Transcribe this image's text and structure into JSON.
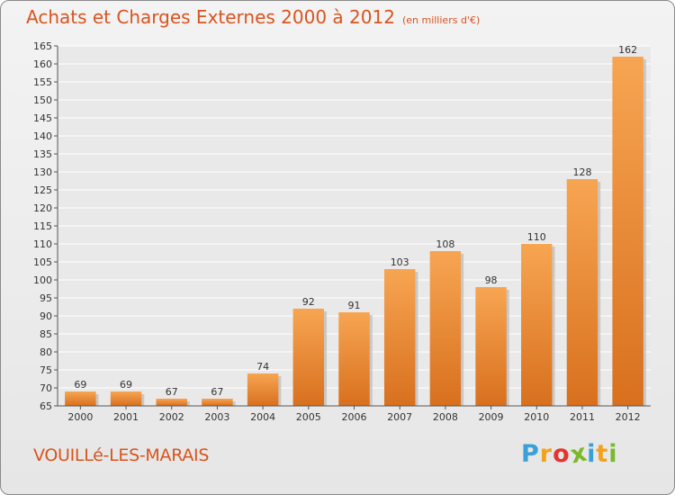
{
  "header": {
    "title": "Achats et Charges Externes 2000 à 2012",
    "unit": "(en milliers d'€)"
  },
  "footer": {
    "place": "VOUILLé-LES-MARAIS",
    "logo": [
      "P",
      "r",
      "o",
      "x",
      "i",
      "t",
      "i"
    ],
    "logo_colors": [
      "#3aa0d8",
      "#f2a21c",
      "#e3342f",
      "#7ab929",
      "#3aa0d8",
      "#f2a21c",
      "#7ab929"
    ]
  },
  "colors": {
    "bar_top": "#f7a552",
    "bar_bottom": "#d8701e",
    "bar_shadow": "#b9b9b9",
    "grid": "#ffffff",
    "title": "#d9541e"
  },
  "chart_data": {
    "type": "bar",
    "title": "Achats et Charges Externes 2000 à 2012",
    "categories": [
      "2000",
      "2001",
      "2002",
      "2003",
      "2004",
      "2005",
      "2006",
      "2007",
      "2008",
      "2009",
      "2010",
      "2011",
      "2012"
    ],
    "values": [
      69,
      69,
      67,
      67,
      74,
      92,
      91,
      103,
      108,
      98,
      110,
      128,
      162
    ],
    "ylim": [
      65,
      165
    ],
    "ytick_step": 5,
    "yticks": [
      "65",
      "70",
      "75",
      "80",
      "85",
      "90",
      "95",
      "100",
      "105",
      "110",
      "115",
      "120",
      "125",
      "130",
      "135",
      "140",
      "145",
      "150",
      "155",
      "160",
      "165"
    ],
    "data_labels": [
      "69",
      "69",
      "67",
      "67",
      "74",
      "92",
      "91",
      "103",
      "108",
      "98",
      "110",
      "128",
      "162"
    ],
    "grid": true,
    "legend": "none"
  }
}
